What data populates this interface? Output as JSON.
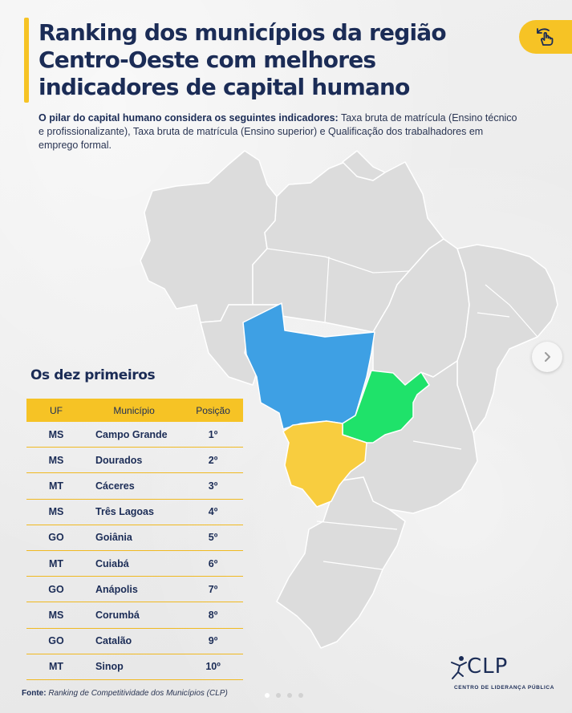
{
  "header": {
    "title_line1": "Ranking dos municípios da região",
    "title_line2": "Centro-Oeste com melhores",
    "title_line3": "indicadores de capital humano",
    "subtitle_bold": "O pilar do capital humano considera os seguintes indicadores:",
    "subtitle_rest": " Taxa bruta de matrícula (Ensino técnico e profissionalizante), Taxa bruta de matrícula  (Ensino superior) e Qualificação dos trabalhadores em emprego formal."
  },
  "map": {
    "states_highlighted": [
      {
        "uf": "MT",
        "color": "#3ea0e4"
      },
      {
        "uf": "GO",
        "color": "#1fe26a"
      },
      {
        "uf": "MS",
        "color": "#f8cd3f"
      }
    ],
    "base_color": "#dcdcdc"
  },
  "table": {
    "title": "Os dez primeiros",
    "headers": {
      "uf": "UF",
      "municipio": "Município",
      "posicao": "Posição"
    },
    "rows": [
      {
        "uf": "MS",
        "municipio": "Campo Grande",
        "posicao": "1º"
      },
      {
        "uf": "MS",
        "municipio": "Dourados",
        "posicao": "2º"
      },
      {
        "uf": "MT",
        "municipio": "Cáceres",
        "posicao": "3º"
      },
      {
        "uf": "MS",
        "municipio": "Três Lagoas",
        "posicao": "4º"
      },
      {
        "uf": "GO",
        "municipio": "Goiânia",
        "posicao": "5º"
      },
      {
        "uf": "MT",
        "municipio": "Cuiabá",
        "posicao": "6º"
      },
      {
        "uf": "GO",
        "municipio": "Anápolis",
        "posicao": "7º"
      },
      {
        "uf": "MS",
        "municipio": "Corumbá",
        "posicao": "8º"
      },
      {
        "uf": "GO",
        "municipio": "Catalão",
        "posicao": "9º"
      },
      {
        "uf": "MT",
        "municipio": "Sinop",
        "posicao": "10º"
      }
    ]
  },
  "footer": {
    "source_label": "Fonte:",
    "source_text": " Ranking de Competitividade dos Municípios (CLP)",
    "logo_text": "CLP",
    "logo_sub": "CENTRO DE LIDERANÇA PÚBLICA"
  },
  "carousel": {
    "total_slides": 4,
    "active_slide": 1
  },
  "icons": {
    "swipe": "swipe-hand-icon",
    "next": "chevron-right-icon"
  },
  "colors": {
    "accent": "#f6c325",
    "navy": "#1b2c56"
  }
}
